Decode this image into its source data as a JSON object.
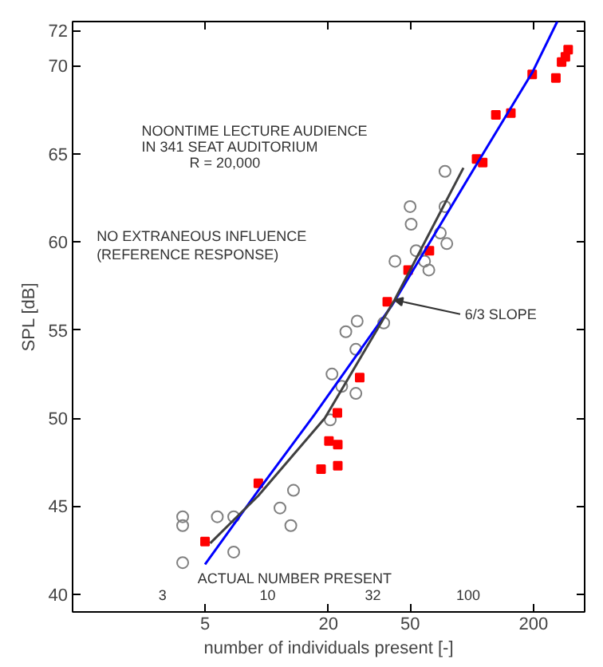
{
  "chart_data": {
    "type": "scatter",
    "xlabel": "number of individuals present [-]",
    "ylabel": "SPL [dB]",
    "log": "x",
    "xlim": [
      1.13,
      355
    ],
    "xticks": [
      5,
      20,
      50,
      200
    ],
    "ylim": [
      39,
      72.5
    ],
    "yticks": [
      40,
      45,
      50,
      55,
      60,
      65,
      70,
      72
    ],
    "grid": false,
    "series": [
      {
        "marker": "circle",
        "color": "#808080",
        "x": [
          3.89,
          3.89,
          3.89,
          5.74,
          6.9,
          6.9,
          11.6,
          13.1,
          13.5,
          20.4,
          27.2,
          23.2,
          20.8,
          27.2,
          24.3,
          27.6,
          37.2,
          42.2,
          53.5,
          58.8,
          61.7,
          70.2,
          75.5,
          50.6,
          50,
          74,
          74
        ],
        "values": [
          44.4,
          43.9,
          41.8,
          44.4,
          44.4,
          42.4,
          44.9,
          43.9,
          45.9,
          49.9,
          51.4,
          51.8,
          52.5,
          53.9,
          54.9,
          55.5,
          55.4,
          58.9,
          59.5,
          58.9,
          58.4,
          60.5,
          59.9,
          61.0,
          62.0,
          62.0,
          64.0
        ]
      },
      {
        "marker": "square",
        "color": "#ff0000",
        "x": [
          5.0,
          9.1,
          18.4,
          22.2,
          20.1,
          22.2,
          22.1,
          28.4,
          38.7,
          48.9,
          62.1,
          105.5,
          113,
          131,
          155,
          197,
          257,
          274,
          286,
          295
        ],
        "values": [
          43.0,
          46.3,
          47.1,
          47.3,
          48.7,
          48.5,
          50.3,
          52.3,
          56.6,
          58.4,
          59.5,
          64.7,
          64.5,
          67.2,
          67.3,
          69.5,
          69.3,
          70.2,
          70.5,
          70.9
        ]
      },
      {
        "type": "line",
        "color": "#0000ff",
        "x": [
          5,
          9.1,
          17.1,
          40.8,
          105.5,
          197,
          261
        ],
        "values": [
          41.7,
          45.9,
          50.2,
          56.4,
          64.4,
          69.6,
          72.5
        ]
      },
      {
        "type": "line",
        "color": "#404040",
        "x": [
          5.3,
          9.1,
          19.2,
          42,
          91
        ],
        "values": [
          42.9,
          45.6,
          50.0,
          56.7,
          64.2
        ]
      }
    ],
    "annotations": [
      "NOONTIME LECTURE AUDIENCE",
      "IN 341 SEAT AUDITORIUM",
      "R = 20,000",
      "NO EXTRANEOUS INFLUENCE",
      "(REFERENCE RESPONSE)",
      "ACTUAL NUMBER PRESENT",
      "3",
      "10",
      "32",
      "100",
      {
        "text": "6/3 SLOPE",
        "x": 42,
        "y": 56.7
      }
    ]
  }
}
